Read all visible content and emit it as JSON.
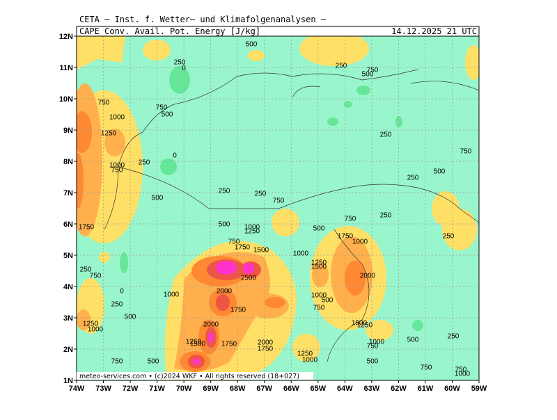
{
  "header": {
    "line1": "CETA — Inst. f. Wetter— und Klimafolgenanalysen —",
    "title": "CAPE Conv. Avail. Pot. Energy [J/kg]",
    "date": "14.12.2025 21 UTC"
  },
  "axes": {
    "lat_labels": [
      "12N",
      "11N",
      "10N",
      "9N",
      "8N",
      "7N",
      "6N",
      "5N",
      "4N",
      "3N",
      "2N",
      "1N"
    ],
    "lon_labels": [
      "74W",
      "73W",
      "72W",
      "71W",
      "70W",
      "69W",
      "68W",
      "67W",
      "66W",
      "65W",
      "64W",
      "63W",
      "62W",
      "61W",
      "60W",
      "59W"
    ]
  },
  "footer": "meteo-services.com • (c)2024 WKF • All rights reserved (18+027)",
  "contour_labels": [
    "500",
    "250",
    "0",
    "250",
    "500",
    "750",
    "750",
    "750",
    "500",
    "1000",
    "1250",
    "250",
    "750",
    "0",
    "250",
    "1000",
    "750",
    "500",
    "250",
    "250",
    "250",
    "500",
    "750",
    "500",
    "1750",
    "1000",
    "1250",
    "500",
    "750",
    "250",
    "1750",
    "1000",
    "250",
    "750",
    "1750",
    "1500",
    "1000",
    "1250",
    "1500",
    "250",
    "750",
    "2500",
    "2000",
    "0",
    "2000",
    "1000",
    "1000",
    "500",
    "250",
    "1750",
    "750",
    "500",
    "1250",
    "1000",
    "2000",
    "1500",
    "1250",
    "250",
    "1250",
    "1500",
    "1750",
    "2000",
    "1000",
    "500",
    "750",
    "1750",
    "1250",
    "1000",
    "500",
    "750",
    "500",
    "750",
    "750",
    "1000"
  ]
}
